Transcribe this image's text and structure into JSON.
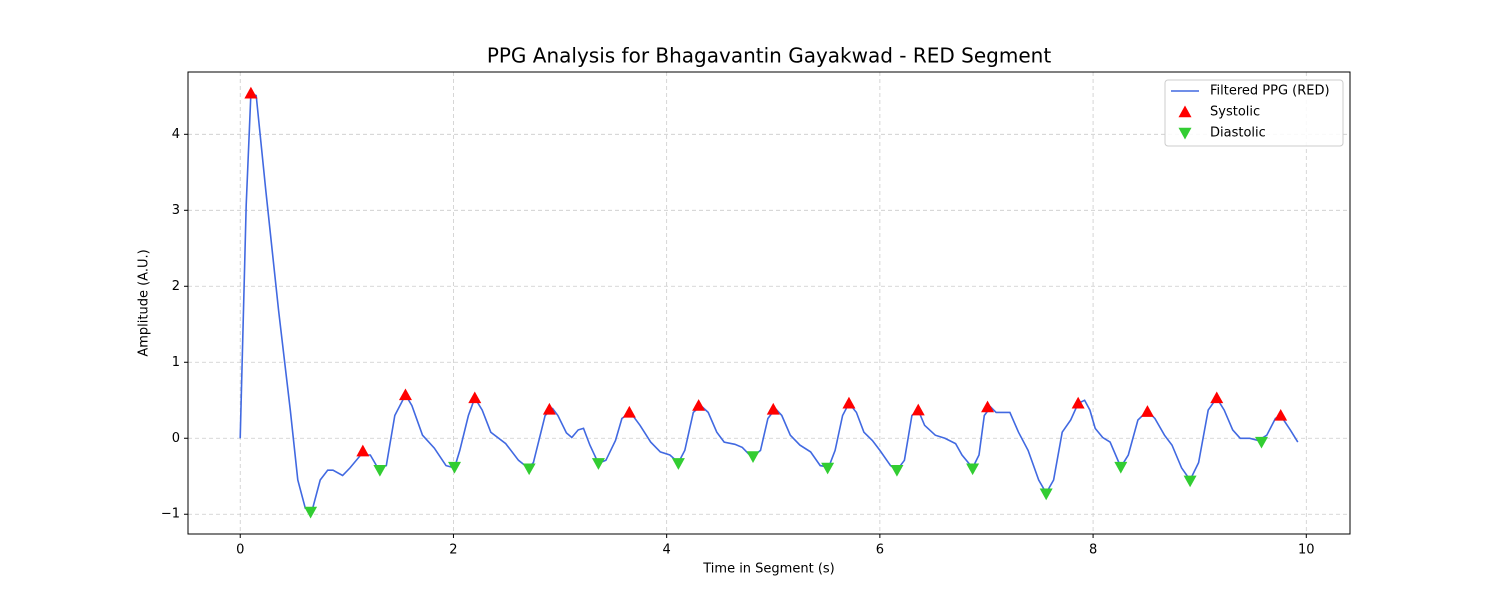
{
  "chart_data": {
    "type": "line",
    "title": "PPG Analysis for Bhagavantin Gayakwad - RED Segment",
    "x_label": "Time in Segment (s)",
    "y_label": "Amplitude (A.U.)",
    "xlim": [
      -0.49,
      10.41
    ],
    "ylim": [
      -1.26,
      4.82
    ],
    "xticks": [
      0,
      2,
      4,
      6,
      8,
      10
    ],
    "yticks": [
      {
        "value": -1,
        "label": "−1"
      },
      0,
      1,
      2,
      3,
      4
    ],
    "grid": true,
    "legend": "upper right",
    "series": [
      {
        "name": "Filtered PPG (RED)",
        "color": "#4169e1",
        "mark": "line",
        "x": [
          0,
          0.056,
          0.1,
          0.15,
          0.24,
          0.36,
          0.47,
          0.54,
          0.61,
          0.68,
          0.75,
          0.82,
          0.87,
          0.96,
          1.03,
          1.13,
          1.22,
          1.29,
          1.37,
          1.45,
          1.55,
          1.61,
          1.71,
          1.82,
          1.93,
          2.01,
          2.06,
          2.14,
          2.2,
          2.27,
          2.35,
          2.49,
          2.61,
          2.7,
          2.75,
          2.86,
          2.93,
          2.98,
          3.06,
          3.11,
          3.17,
          3.22,
          3.28,
          3.36,
          3.43,
          3.52,
          3.58,
          3.66,
          3.75,
          3.85,
          3.94,
          4.03,
          4.11,
          4.17,
          4.25,
          4.32,
          4.39,
          4.47,
          4.54,
          4.64,
          4.71,
          4.8,
          4.88,
          4.95,
          5.02,
          5.08,
          5.16,
          5.25,
          5.35,
          5.44,
          5.52,
          5.58,
          5.65,
          5.71,
          5.78,
          5.85,
          5.93,
          6.0,
          6.1,
          6.16,
          6.23,
          6.3,
          6.36,
          6.42,
          6.52,
          6.61,
          6.71,
          6.77,
          6.87,
          6.93,
          6.98,
          7.04,
          7.09,
          7.15,
          7.22,
          7.3,
          7.39,
          7.49,
          7.56,
          7.63,
          7.71,
          7.79,
          7.86,
          7.92,
          7.97,
          8.02,
          8.09,
          8.16,
          8.26,
          8.33,
          8.42,
          8.51,
          8.58,
          8.67,
          8.74,
          8.83,
          8.91,
          8.99,
          9.08,
          9.16,
          9.23,
          9.31,
          9.38,
          9.47,
          9.55,
          9.63,
          9.71,
          9.76,
          9.85,
          9.92
        ],
        "values": [
          0,
          3.07,
          4.54,
          4.51,
          3.26,
          1.68,
          0.37,
          -0.55,
          -0.92,
          -0.92,
          -0.55,
          -0.42,
          -0.42,
          -0.49,
          -0.39,
          -0.22,
          -0.22,
          -0.39,
          -0.36,
          0.3,
          0.57,
          0.43,
          0.04,
          -0.13,
          -0.36,
          -0.39,
          -0.16,
          0.3,
          0.53,
          0.37,
          0.08,
          -0.07,
          -0.29,
          -0.39,
          -0.32,
          0.3,
          0.39,
          0.3,
          0.07,
          0.01,
          0.11,
          0.13,
          -0.09,
          -0.33,
          -0.29,
          -0.03,
          0.26,
          0.34,
          0.17,
          -0.05,
          -0.18,
          -0.22,
          -0.32,
          -0.16,
          0.34,
          0.43,
          0.34,
          0.08,
          -0.05,
          -0.08,
          -0.12,
          -0.25,
          -0.16,
          0.26,
          0.39,
          0.3,
          0.04,
          -0.09,
          -0.18,
          -0.36,
          -0.38,
          -0.16,
          0.3,
          0.46,
          0.34,
          0.08,
          -0.03,
          -0.16,
          -0.36,
          -0.42,
          -0.29,
          0.3,
          0.37,
          0.17,
          0.04,
          0.0,
          -0.07,
          -0.22,
          -0.39,
          -0.22,
          0.3,
          0.41,
          0.34,
          0.34,
          0.34,
          0.08,
          -0.16,
          -0.55,
          -0.72,
          -0.55,
          0.08,
          0.24,
          0.46,
          0.5,
          0.37,
          0.13,
          0.01,
          -0.05,
          -0.38,
          -0.22,
          0.24,
          0.36,
          0.26,
          0.04,
          -0.09,
          -0.39,
          -0.55,
          -0.32,
          0.37,
          0.53,
          0.37,
          0.11,
          0.0,
          0.0,
          -0.03,
          0.04,
          0.26,
          0.3,
          0.11,
          -0.05
        ]
      },
      {
        "name": "Systolic",
        "color": "#ff0000",
        "mark": "triangle-up",
        "x": [
          0.1,
          1.15,
          1.55,
          2.2,
          2.9,
          3.65,
          4.3,
          5.0,
          5.71,
          6.36,
          7.01,
          7.86,
          8.51,
          9.16,
          9.76
        ],
        "values": [
          4.54,
          -0.17,
          0.57,
          0.53,
          0.38,
          0.34,
          0.43,
          0.38,
          0.46,
          0.37,
          0.41,
          0.46,
          0.35,
          0.53,
          0.3
        ]
      },
      {
        "name": "Diastolic",
        "color": "#32cd32",
        "mark": "triangle-down",
        "x": [
          0.66,
          1.31,
          2.01,
          2.71,
          3.36,
          4.11,
          4.81,
          5.51,
          6.16,
          6.87,
          7.56,
          8.26,
          8.91,
          9.58
        ],
        "values": [
          -0.97,
          -0.42,
          -0.38,
          -0.4,
          -0.33,
          -0.33,
          -0.24,
          -0.39,
          -0.42,
          -0.4,
          -0.73,
          -0.38,
          -0.56,
          -0.05
        ]
      }
    ]
  }
}
